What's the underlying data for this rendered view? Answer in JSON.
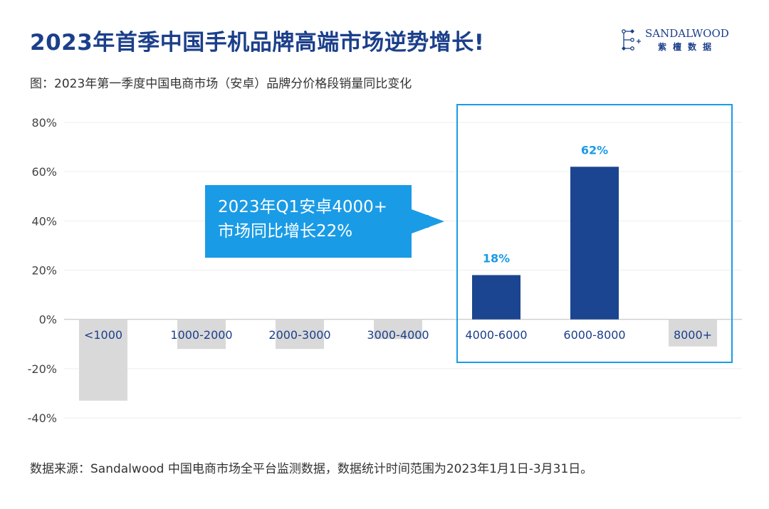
{
  "header": {
    "title": "2023年首季中国手机品牌高端市场逆势增长!",
    "subtitle": "图：2023年第一季度中国电商市场（安卓）品牌分价格段销量同比变化"
  },
  "logo": {
    "name_en": "SANDALWOOD",
    "name_cn": "紫檀数据"
  },
  "callout": {
    "line1": "2023年Q1安卓4000+",
    "line2": "市场同比增长22%"
  },
  "footer": {
    "source": "数据来源：Sandalwood 中国电商市场全平台监测数据，数据统计时间范围为2023年1月1日-3月31日。"
  },
  "colors": {
    "negative": "#d9d9d9",
    "positive": "#1b4590",
    "label": "#1a9be6",
    "title": "#1b3f8b",
    "highlight": "#1a9be6"
  },
  "chart_data": {
    "type": "bar",
    "title": "",
    "xlabel": "",
    "ylabel": "",
    "categories": [
      "<1000",
      "1000-2000",
      "2000-3000",
      "3000-4000",
      "4000-6000",
      "6000-8000",
      "8000+"
    ],
    "values": [
      -33,
      -12,
      -12,
      -8,
      18,
      62,
      -11
    ],
    "data_labels": [
      "",
      "",
      "",
      "",
      "18%",
      "62%",
      ""
    ],
    "ylim": [
      -40,
      80
    ],
    "yticks": [
      80,
      60,
      40,
      20,
      0,
      -20,
      -40
    ],
    "ytick_labels": [
      "80%",
      "60%",
      "40%",
      "20%",
      "0%",
      "-20%",
      "-40%"
    ],
    "grid": true,
    "highlight_categories": [
      "4000-6000",
      "6000-8000",
      "8000+"
    ]
  }
}
